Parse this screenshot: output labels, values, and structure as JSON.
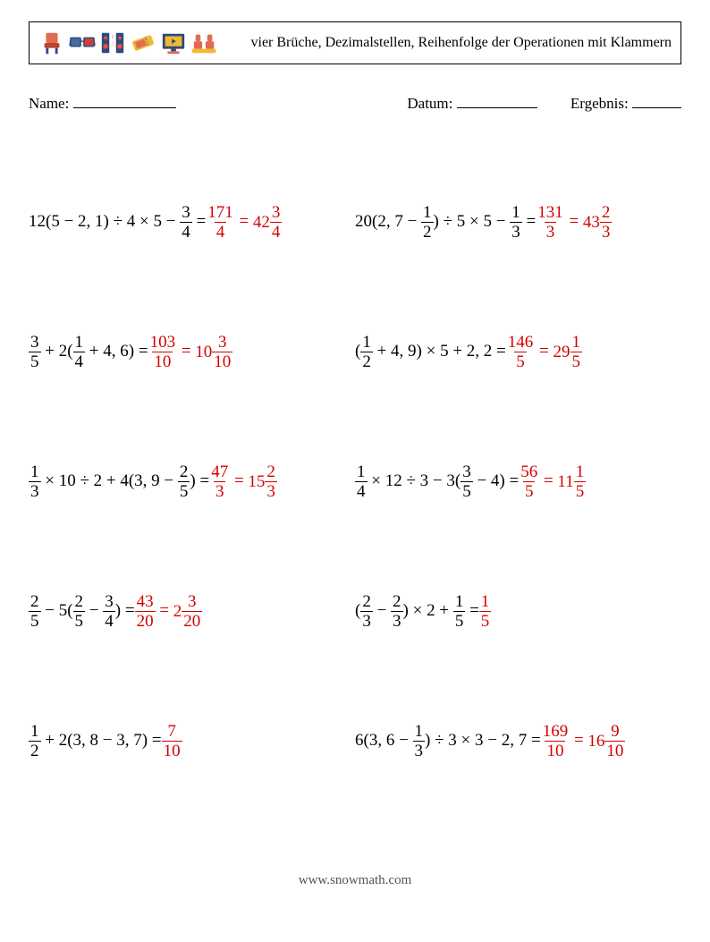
{
  "icons": [
    {
      "name": "chair-icon",
      "colors": {
        "a": "#e06b50",
        "b": "#b8432f",
        "c": "#2d4a7a"
      }
    },
    {
      "name": "glasses-icon",
      "colors": {
        "a": "#2d4a7a",
        "b": "#4a6aa0",
        "c": "#d04030"
      }
    },
    {
      "name": "speaker-icon",
      "colors": {
        "a": "#2d4a7a",
        "b": "#e85040",
        "c": "#f4a830"
      }
    },
    {
      "name": "ticket-icon",
      "colors": {
        "a": "#f4b830",
        "b": "#e06b50",
        "c": "#2d4a7a"
      }
    },
    {
      "name": "screen-icon",
      "colors": {
        "a": "#2d4a7a",
        "b": "#f4b830",
        "c": "#e06b50"
      }
    },
    {
      "name": "seat-icon",
      "colors": {
        "a": "#e06b50",
        "b": "#f4b830",
        "c": "#2d4a7a"
      }
    }
  ],
  "title": "vier Brüche, Dezimalstellen, Reihenfolge der Operationen mit Klammern",
  "meta": {
    "name": "Name:",
    "date": "Datum:",
    "result": "Ergebnis:"
  },
  "problems": [
    {
      "q": [
        "12(5 − 2, 1) ÷ 4 × 5 − ",
        {
          "f": [
            3,
            4
          ]
        },
        " = "
      ],
      "a": [
        {
          "f": [
            171,
            4
          ]
        },
        " = ",
        {
          "m": [
            42,
            3,
            4
          ]
        }
      ]
    },
    {
      "q": [
        "20(2, 7 − ",
        {
          "f": [
            1,
            2
          ]
        },
        ") ÷ 5 × 5 − ",
        {
          "f": [
            1,
            3
          ]
        },
        " = "
      ],
      "a": [
        {
          "f": [
            131,
            3
          ]
        },
        " = ",
        {
          "m": [
            43,
            2,
            3
          ]
        }
      ]
    },
    {
      "q": [
        {
          "f": [
            3,
            5
          ]
        },
        " + 2(",
        {
          "f": [
            1,
            4
          ]
        },
        " + 4, 6) = "
      ],
      "a": [
        {
          "f": [
            103,
            10
          ]
        },
        " = ",
        {
          "m": [
            10,
            3,
            10
          ]
        }
      ]
    },
    {
      "q": [
        "(",
        {
          "f": [
            1,
            2
          ]
        },
        " + 4, 9) × 5 + 2, 2 = "
      ],
      "a": [
        {
          "f": [
            146,
            5
          ]
        },
        " = ",
        {
          "m": [
            29,
            1,
            5
          ]
        }
      ]
    },
    {
      "q": [
        {
          "f": [
            1,
            3
          ]
        },
        " × 10 ÷ 2 + 4(3, 9 − ",
        {
          "f": [
            2,
            5
          ]
        },
        ") = "
      ],
      "a": [
        {
          "f": [
            47,
            3
          ]
        },
        " = ",
        {
          "m": [
            15,
            2,
            3
          ]
        }
      ]
    },
    {
      "q": [
        {
          "f": [
            1,
            4
          ]
        },
        " × 12 ÷ 3 − 3(",
        {
          "f": [
            3,
            5
          ]
        },
        " − 4) = "
      ],
      "a": [
        {
          "f": [
            56,
            5
          ]
        },
        " = ",
        {
          "m": [
            11,
            1,
            5
          ]
        }
      ]
    },
    {
      "q": [
        {
          "f": [
            2,
            5
          ]
        },
        " − 5(",
        {
          "f": [
            2,
            5
          ]
        },
        " − ",
        {
          "f": [
            3,
            4
          ]
        },
        ") = "
      ],
      "a": [
        {
          "f": [
            43,
            20
          ]
        },
        " = ",
        {
          "m": [
            2,
            3,
            20
          ]
        }
      ]
    },
    {
      "q": [
        "(",
        {
          "f": [
            2,
            3
          ]
        },
        " − ",
        {
          "f": [
            2,
            3
          ]
        },
        ") × 2 + ",
        {
          "f": [
            1,
            5
          ]
        },
        " = "
      ],
      "a": [
        {
          "f": [
            1,
            5
          ]
        }
      ]
    },
    {
      "q": [
        {
          "f": [
            1,
            2
          ]
        },
        " + 2(3, 8 − 3, 7) = "
      ],
      "a": [
        {
          "f": [
            7,
            10
          ]
        }
      ]
    },
    {
      "q": [
        "6(3, 6 − ",
        {
          "f": [
            1,
            3
          ]
        },
        ") ÷ 3 × 3 − 2, 7 = "
      ],
      "a": [
        {
          "f": [
            169,
            10
          ]
        },
        " = ",
        {
          "m": [
            16,
            9,
            10
          ]
        }
      ]
    }
  ],
  "footer": "www.snowmath.com"
}
